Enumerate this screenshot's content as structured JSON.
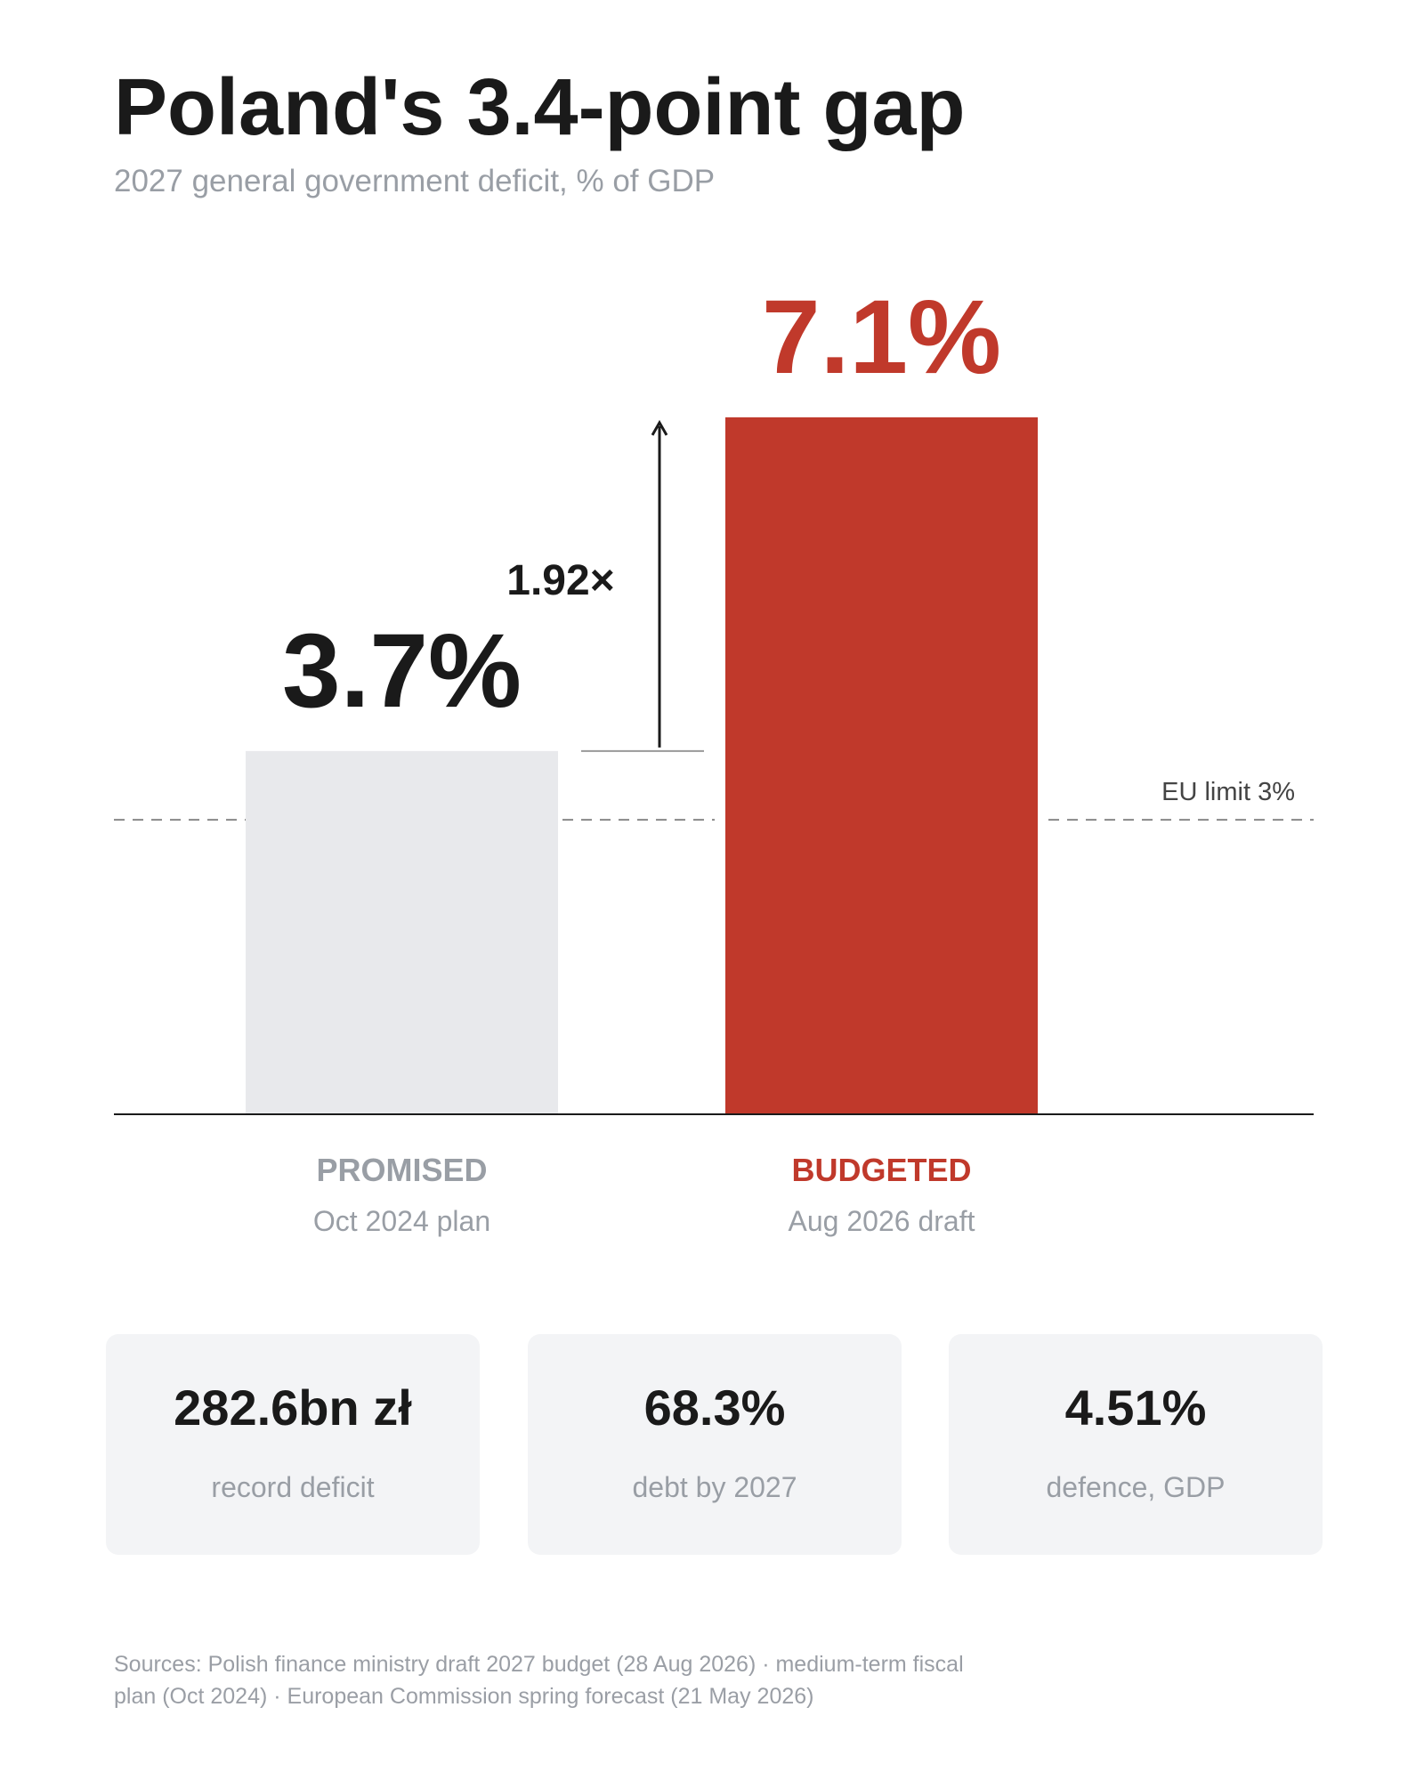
{
  "chart_data": {
    "type": "bar",
    "title": "Poland's 3.4-point gap",
    "subtitle": "2027 general government deficit, % of GDP",
    "categories": [
      "PROMISED",
      "BUDGETED"
    ],
    "category_sublabels": [
      "Oct 2024 plan",
      "Aug 2026 draft"
    ],
    "values": [
      3.7,
      7.1
    ],
    "value_labels": [
      "3.7%",
      "7.1%"
    ],
    "colors": [
      "#e8e9ec",
      "#c0392b"
    ],
    "label_colors": [
      "#1a1a1a",
      "#c0392b"
    ],
    "category_colors": [
      "#999ea5",
      "#c0392b"
    ],
    "ylim": [
      0,
      8
    ],
    "reference_line": {
      "value": 3,
      "label": "EU limit 3%"
    },
    "annotation": "1.92×"
  },
  "stats": [
    {
      "value": "282.6bn zł",
      "label": "record deficit"
    },
    {
      "value": "68.3%",
      "label": "debt by 2027"
    },
    {
      "value": "4.51%",
      "label": "defence, GDP"
    }
  ],
  "sources": "Sources: Polish finance ministry draft 2027 budget (28 Aug 2026) · medium-term fiscal plan (Oct 2024) · European Commission spring forecast (21 May 2026)"
}
